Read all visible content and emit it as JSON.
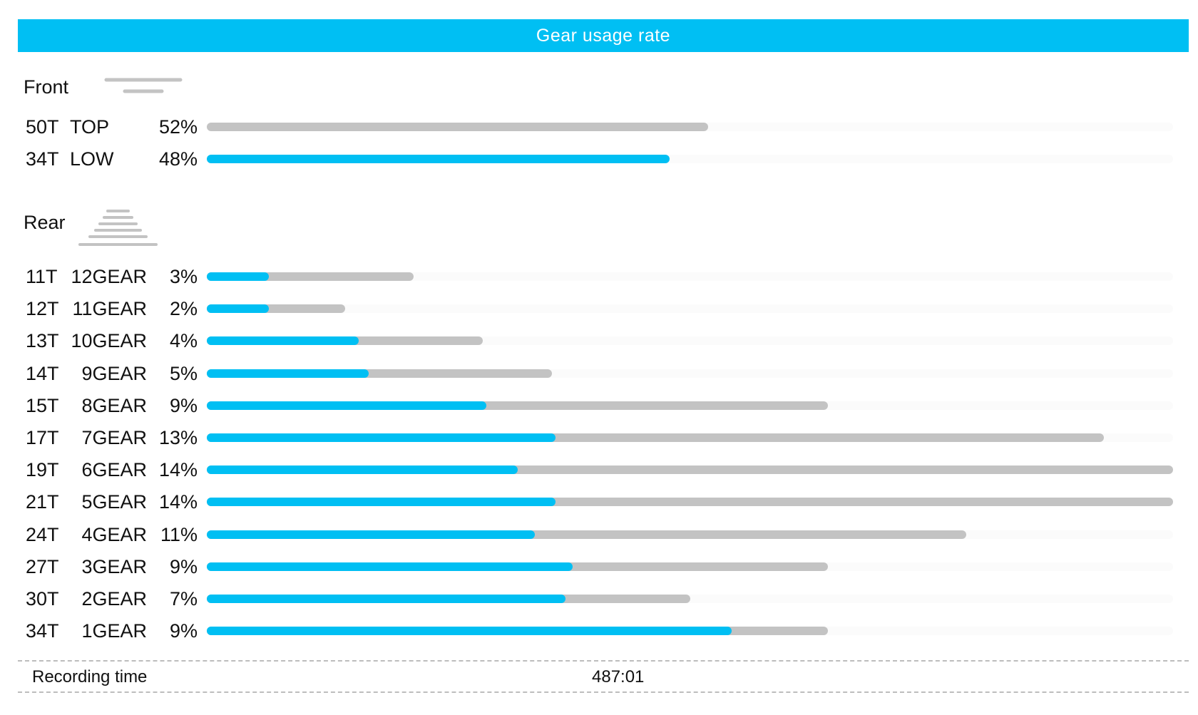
{
  "header": {
    "title": "Gear usage rate"
  },
  "front": {
    "label": "Front",
    "rows": [
      {
        "teeth": "50T",
        "name": "TOP",
        "pct": "52%",
        "blue": 0,
        "grey": 52
      },
      {
        "teeth": "34T",
        "name": "LOW",
        "pct": "48%",
        "blue": 48,
        "grey": 0
      }
    ]
  },
  "rear": {
    "label": "Rear",
    "rows": [
      {
        "teeth": "11T",
        "name": "12GEAR",
        "pct": "3%",
        "blue": 0.9,
        "grey": 3
      },
      {
        "teeth": "12T",
        "name": "11GEAR",
        "pct": "2%",
        "blue": 0.9,
        "grey": 2
      },
      {
        "teeth": "13T",
        "name": "10GEAR",
        "pct": "4%",
        "blue": 2.2,
        "grey": 4
      },
      {
        "teeth": "14T",
        "name": "9GEAR",
        "pct": "5%",
        "blue": 2.35,
        "grey": 5
      },
      {
        "teeth": "15T",
        "name": "8GEAR",
        "pct": "9%",
        "blue": 4.05,
        "grey": 9
      },
      {
        "teeth": "17T",
        "name": "7GEAR",
        "pct": "13%",
        "blue": 5.05,
        "grey": 13
      },
      {
        "teeth": "19T",
        "name": "6GEAR",
        "pct": "14%",
        "blue": 4.5,
        "grey": 14
      },
      {
        "teeth": "21T",
        "name": "5GEAR",
        "pct": "14%",
        "blue": 5.05,
        "grey": 14
      },
      {
        "teeth": "24T",
        "name": "4GEAR",
        "pct": "11%",
        "blue": 4.75,
        "grey": 11
      },
      {
        "teeth": "27T",
        "name": "3GEAR",
        "pct": "9%",
        "blue": 5.3,
        "grey": 9
      },
      {
        "teeth": "30T",
        "name": "2GEAR",
        "pct": "7%",
        "blue": 5.2,
        "grey": 7
      },
      {
        "teeth": "34T",
        "name": "1GEAR",
        "pct": "9%",
        "blue": 7.6,
        "grey": 9
      }
    ]
  },
  "footer": {
    "label": "Recording time",
    "value": "487:01"
  },
  "colors": {
    "accent": "#00bff3",
    "bar_grey": "#c3c3c3"
  },
  "chart_data": [
    {
      "type": "bar",
      "categories": [
        "50T TOP",
        "34T LOW"
      ],
      "values": [
        52,
        48
      ],
      "unit": "%"
    },
    {
      "type": "bar",
      "categories": [
        "11T 12GEAR",
        "12T 11GEAR",
        "13T 10GEAR",
        "14T 9GEAR",
        "15T 8GEAR",
        "17T 7GEAR",
        "19T 6GEAR",
        "21T 5GEAR",
        "24T 4GEAR",
        "27T 3GEAR",
        "30T 2GEAR",
        "34T 1GEAR"
      ],
      "values": [
        3,
        2,
        4,
        5,
        9,
        13,
        14,
        14,
        11,
        9,
        7,
        9
      ],
      "unit": "%"
    }
  ]
}
